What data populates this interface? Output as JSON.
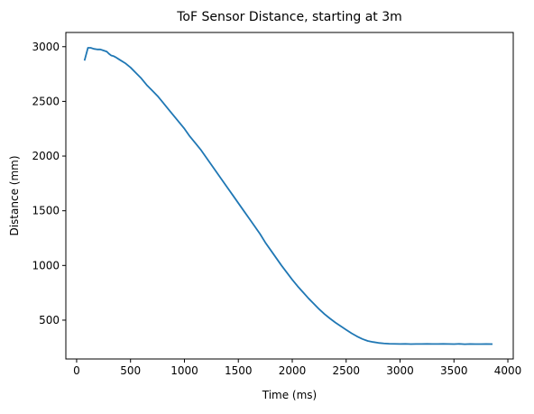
{
  "chart_data": {
    "type": "line",
    "title": "ToF Sensor Distance, starting at 3m",
    "xlabel": "Time (ms)",
    "ylabel": "Distance (mm)",
    "xlim": [
      -100,
      4050
    ],
    "ylim": [
      145,
      3130
    ],
    "xticks": [
      0,
      500,
      1000,
      1500,
      2000,
      2500,
      3000,
      3500,
      4000
    ],
    "yticks": [
      500,
      1000,
      1500,
      2000,
      2500,
      3000
    ],
    "xtick_labels": [
      "0",
      "500",
      "1000",
      "1500",
      "2000",
      "2500",
      "3000",
      "3500",
      "4000"
    ],
    "ytick_labels": [
      "500",
      "1000",
      "1500",
      "2000",
      "2500",
      "3000"
    ],
    "grid": false,
    "line_color": "#1f77b4",
    "series": [
      {
        "x": [
          75,
          105,
          130,
          160,
          190,
          220,
          250,
          280,
          300,
          320,
          340,
          360,
          400,
          450,
          500,
          550,
          600,
          650,
          700,
          750,
          800,
          850,
          900,
          950,
          1000,
          1050,
          1100,
          1150,
          1200,
          1250,
          1300,
          1350,
          1400,
          1450,
          1500,
          1550,
          1600,
          1650,
          1700,
          1750,
          1800,
          1850,
          1900,
          1950,
          2000,
          2050,
          2100,
          2150,
          2200,
          2250,
          2300,
          2350,
          2400,
          2450,
          2500,
          2550,
          2600,
          2650,
          2700,
          2750,
          2800,
          2850,
          2900,
          2950,
          3000,
          3050,
          3100,
          3150,
          3200,
          3250,
          3300,
          3350,
          3400,
          3450,
          3500,
          3550,
          3600,
          3650,
          3700,
          3750,
          3800,
          3850
        ],
        "y": [
          2880,
          2990,
          2990,
          2980,
          2975,
          2975,
          2965,
          2955,
          2935,
          2920,
          2915,
          2905,
          2880,
          2850,
          2810,
          2760,
          2710,
          2650,
          2600,
          2550,
          2490,
          2430,
          2370,
          2310,
          2250,
          2180,
          2120,
          2060,
          1990,
          1920,
          1850,
          1780,
          1710,
          1640,
          1570,
          1500,
          1430,
          1360,
          1290,
          1210,
          1140,
          1070,
          1000,
          935,
          870,
          810,
          755,
          700,
          650,
          600,
          555,
          515,
          478,
          445,
          412,
          380,
          352,
          328,
          310,
          300,
          292,
          287,
          284,
          283,
          282,
          283,
          281,
          282,
          282,
          283,
          282,
          282,
          283,
          282,
          281,
          283,
          280,
          282,
          281,
          281,
          282,
          281
        ]
      }
    ]
  }
}
